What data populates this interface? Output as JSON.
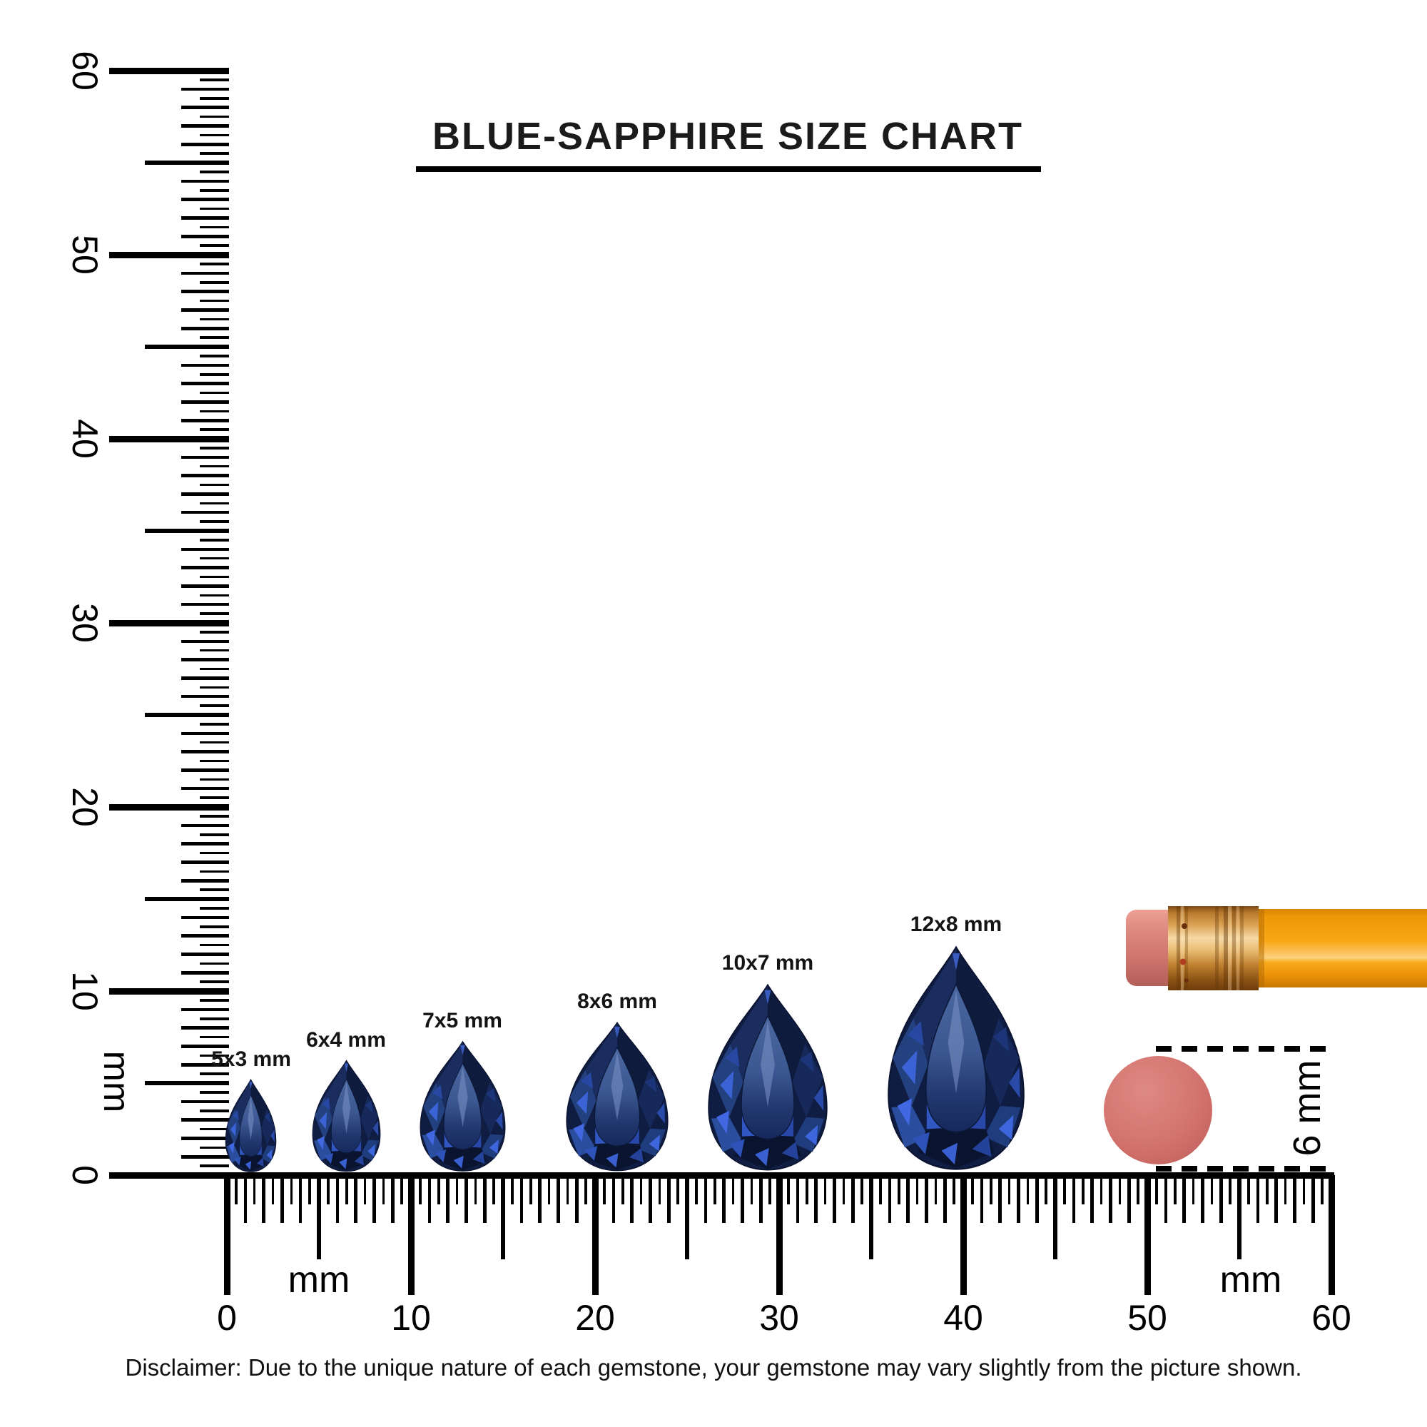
{
  "title": "BLUE-SAPPHIRE SIZE CHART",
  "rulers": {
    "unit_label": "mm",
    "vertical": {
      "min": 0,
      "max": 60,
      "major_step": 10,
      "minor_step": 0.5,
      "major_labels": [
        "60",
        "50",
        "40",
        "30",
        "20",
        "10",
        "0"
      ]
    },
    "horizontal": {
      "min": 0,
      "max": 60,
      "major_step": 10,
      "minor_step": 0.5,
      "major_labels": [
        "0",
        "10",
        "20",
        "30",
        "40",
        "50",
        "60"
      ]
    }
  },
  "gems": [
    {
      "label": "5x3 mm",
      "length_mm": 5,
      "width_mm": 3
    },
    {
      "label": "6x4 mm",
      "length_mm": 6,
      "width_mm": 4
    },
    {
      "label": "7x5 mm",
      "length_mm": 7,
      "width_mm": 5
    },
    {
      "label": "8x6 mm",
      "length_mm": 8,
      "width_mm": 6
    },
    {
      "label": "10x7 mm",
      "length_mm": 10,
      "width_mm": 7
    },
    {
      "label": "12x8 mm",
      "length_mm": 12,
      "width_mm": 8
    }
  ],
  "reference_objects": {
    "pencil": {
      "name": "pencil with eraser"
    },
    "eraser_dot": {
      "label": "6 mm",
      "diameter_mm": 6
    }
  },
  "disclaimer": "Disclaimer: Due to the unique nature of each gemstone, your gemstone may vary slightly from the picture shown.",
  "colors": {
    "ink": "#000000",
    "gem_dark": "#101d42",
    "gem_mid": "#24417f",
    "gem_bright": "#3b63d6",
    "gem_table": "#3c5892",
    "eraser_pink": "#d0766f",
    "dot_pink": "#d4746f",
    "ferrule_copper": "#daa254",
    "pencil_orange": "#f8a714"
  }
}
